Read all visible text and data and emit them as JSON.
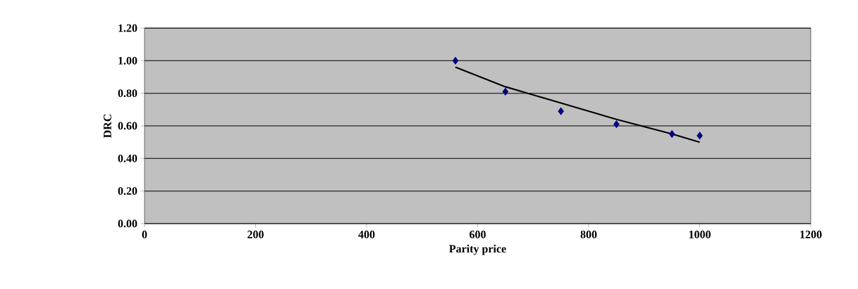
{
  "chart_data": {
    "type": "scatter",
    "xlabel": "Parity price",
    "ylabel": "DRC",
    "xlim": [
      0,
      1200
    ],
    "ylim": [
      0,
      1.2
    ],
    "xticks": [
      0,
      200,
      400,
      600,
      800,
      1000,
      1200
    ],
    "yticks": [
      {
        "value": 0,
        "label": "0.00"
      },
      {
        "value": 0.2,
        "label": "0.20"
      },
      {
        "value": 0.4,
        "label": "0.40"
      },
      {
        "value": 0.6,
        "label": "0.60"
      },
      {
        "value": 0.8,
        "label": "0.80"
      },
      {
        "value": 1.0,
        "label": "1.00"
      },
      {
        "value": 1.2,
        "label": "1.20"
      }
    ],
    "grid": "y",
    "marker": "diamond",
    "series": [
      {
        "color": "#000080",
        "x": [
          560,
          650,
          750,
          850,
          950,
          1000
        ],
        "values": [
          1.0,
          0.81,
          0.69,
          0.61,
          0.55,
          0.54
        ]
      },
      {
        "type": "line",
        "color": "#000000",
        "marker": "none",
        "x": [
          560,
          650,
          750,
          850,
          950,
          1000
        ],
        "values": [
          0.96,
          0.84,
          0.74,
          0.64,
          0.55,
          0.5
        ]
      }
    ]
  }
}
